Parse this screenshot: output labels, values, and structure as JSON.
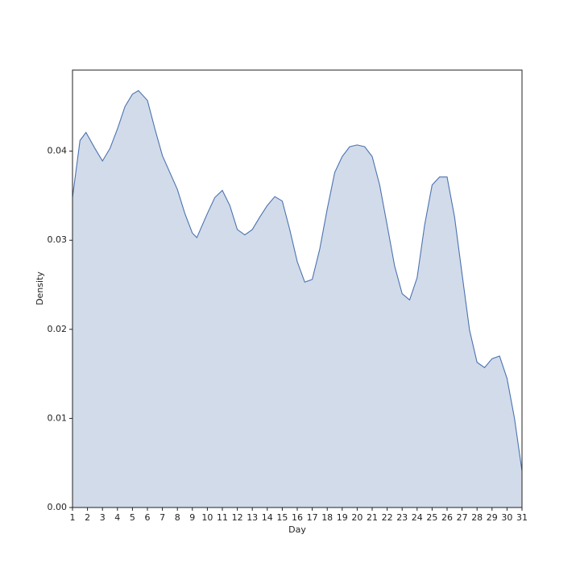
{
  "chart_data": {
    "type": "area",
    "x_label": "Day",
    "y_label": "Density",
    "x": [
      1,
      1.5,
      1.9,
      2.5,
      3,
      3.5,
      4,
      4.5,
      5,
      5.4,
      6,
      6.5,
      7,
      8,
      8.5,
      9,
      9.3,
      10,
      10.5,
      11,
      11.5,
      12,
      12.5,
      13,
      13.5,
      14,
      14.5,
      15,
      15.5,
      16,
      16.5,
      17,
      17.5,
      18,
      18.5,
      19,
      19.5,
      20,
      20.5,
      21,
      21.5,
      22,
      22.5,
      23,
      23.5,
      24,
      24.5,
      25,
      25.5,
      26,
      26.5,
      27,
      27.5,
      28,
      28.5,
      29,
      29.5,
      30,
      30.5,
      31
    ],
    "values": [
      0.0348,
      0.0412,
      0.0421,
      0.0403,
      0.0389,
      0.0403,
      0.0425,
      0.045,
      0.0464,
      0.0468,
      0.0457,
      0.0425,
      0.0395,
      0.0357,
      0.033,
      0.0308,
      0.0303,
      0.033,
      0.0348,
      0.0356,
      0.0339,
      0.0312,
      0.0306,
      0.0312,
      0.0326,
      0.0339,
      0.0349,
      0.0344,
      0.0312,
      0.0276,
      0.0253,
      0.0256,
      0.029,
      0.0335,
      0.0376,
      0.0394,
      0.0405,
      0.0407,
      0.0405,
      0.0394,
      0.0362,
      0.0317,
      0.0271,
      0.024,
      0.0233,
      0.0258,
      0.0317,
      0.0362,
      0.0371,
      0.0371,
      0.0326,
      0.0262,
      0.0199,
      0.0163,
      0.0157,
      0.0167,
      0.017,
      0.0145,
      0.01,
      0.0041
    ],
    "color": "#4c72b0",
    "fill": "#d1dbea",
    "xlim": [
      1,
      31
    ],
    "xticks": [
      1,
      2,
      3,
      4,
      5,
      6,
      7,
      8,
      9,
      10,
      11,
      12,
      13,
      14,
      15,
      16,
      17,
      18,
      19,
      20,
      21,
      22,
      23,
      24,
      25,
      26,
      27,
      28,
      29,
      30,
      31
    ],
    "ylim": [
      0,
      0.0491
    ],
    "yticks": [
      {
        "value": 0,
        "label": "0.00"
      },
      0.01,
      0.02,
      0.03,
      0.04
    ]
  }
}
